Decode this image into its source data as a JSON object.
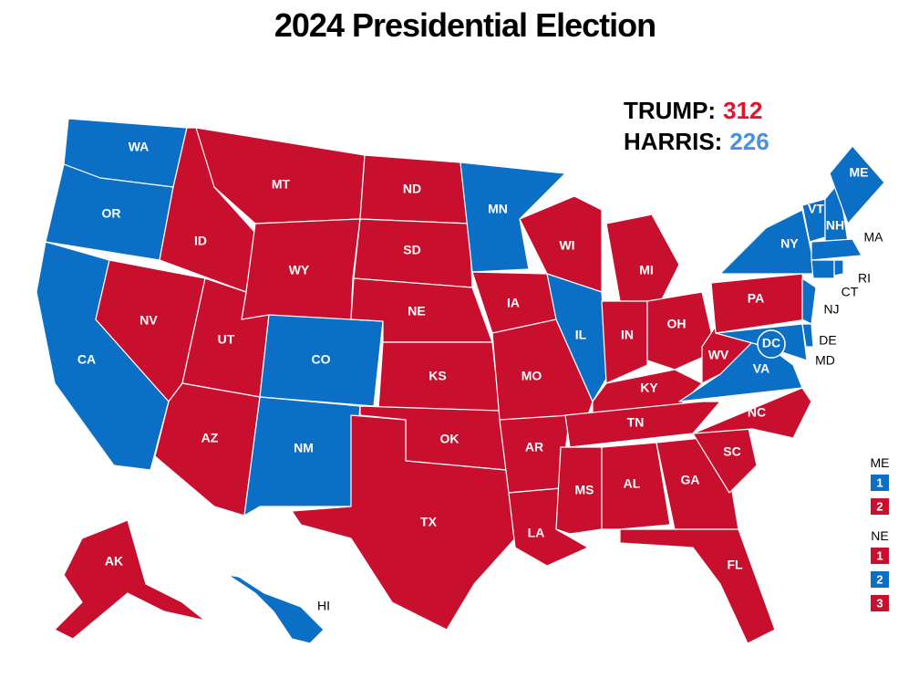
{
  "title": "2024 Presidential Election",
  "tally": [
    {
      "name": "TRUMP:",
      "value": 312,
      "color": "#e8112d"
    },
    {
      "name": "HARRIS:",
      "value": 226,
      "color": "#4a90e2"
    }
  ],
  "states": [
    {
      "label": "WA",
      "color": "#0b6fc6"
    },
    {
      "label": "OR",
      "color": "#0b6fc6"
    },
    {
      "label": "CA",
      "color": "#0b6fc6"
    },
    {
      "label": "NV",
      "color": "#c8102e"
    },
    {
      "label": "ID",
      "color": "#c8102e"
    },
    {
      "label": "MT",
      "color": "#c8102e"
    },
    {
      "label": "WY",
      "color": "#c8102e"
    },
    {
      "label": "UT",
      "color": "#c8102e"
    },
    {
      "label": "AZ",
      "color": "#c8102e"
    },
    {
      "label": "CO",
      "color": "#0b6fc6"
    },
    {
      "label": "NM",
      "color": "#0b6fc6"
    },
    {
      "label": "ND",
      "color": "#c8102e"
    },
    {
      "label": "SD",
      "color": "#c8102e"
    },
    {
      "label": "NE",
      "color": "#c8102e"
    },
    {
      "label": "KS",
      "color": "#c8102e"
    },
    {
      "label": "OK",
      "color": "#c8102e"
    },
    {
      "label": "TX",
      "color": "#c8102e"
    },
    {
      "label": "MN",
      "color": "#0b6fc6"
    },
    {
      "label": "IA",
      "color": "#c8102e"
    },
    {
      "label": "MO",
      "color": "#c8102e"
    },
    {
      "label": "AR",
      "color": "#c8102e"
    },
    {
      "label": "LA",
      "color": "#c8102e"
    },
    {
      "label": "WI",
      "color": "#c8102e"
    },
    {
      "label": "IL",
      "color": "#0b6fc6"
    },
    {
      "label": "MI",
      "color": "#c8102e"
    },
    {
      "label": "IN",
      "color": "#c8102e"
    },
    {
      "label": "OH",
      "color": "#c8102e"
    },
    {
      "label": "KY",
      "color": "#c8102e"
    },
    {
      "label": "TN",
      "color": "#c8102e"
    },
    {
      "label": "MS",
      "color": "#c8102e"
    },
    {
      "label": "AL",
      "color": "#c8102e"
    },
    {
      "label": "GA",
      "color": "#c8102e"
    },
    {
      "label": "FL",
      "color": "#c8102e"
    },
    {
      "label": "SC",
      "color": "#c8102e"
    },
    {
      "label": "NC",
      "color": "#c8102e"
    },
    {
      "label": "VA",
      "color": "#0b6fc6"
    },
    {
      "label": "WV",
      "color": "#c8102e"
    },
    {
      "label": "PA",
      "color": "#c8102e"
    },
    {
      "label": "NY",
      "color": "#0b6fc6"
    },
    {
      "label": "NJ",
      "color": "#0b6fc6"
    },
    {
      "label": "MD",
      "color": "#0b6fc6"
    },
    {
      "label": "DE",
      "color": "#0b6fc6"
    },
    {
      "label": "VT",
      "color": "#0b6fc6"
    },
    {
      "label": "NH",
      "color": "#0b6fc6"
    },
    {
      "label": "ME",
      "color": "#0b6fc6"
    },
    {
      "label": "MA",
      "color": "#0b6fc6"
    },
    {
      "label": "CT",
      "color": "#0b6fc6"
    },
    {
      "label": "RI",
      "color": "#0b6fc6"
    },
    {
      "label": "DC",
      "color": "#0b6fc6"
    },
    {
      "label": "AK",
      "color": "#c8102e"
    },
    {
      "label": "HI",
      "color": "#0b6fc6"
    }
  ],
  "splits": [
    {
      "state": "ME",
      "districts": [
        {
          "label": "1",
          "color": "#0b6fc6"
        },
        {
          "label": "2",
          "color": "#c8102e"
        }
      ]
    },
    {
      "state": "NE",
      "districts": [
        {
          "label": "1",
          "color": "#c8102e"
        },
        {
          "label": "2",
          "color": "#0b6fc6"
        },
        {
          "label": "3",
          "color": "#c8102e"
        }
      ]
    }
  ]
}
